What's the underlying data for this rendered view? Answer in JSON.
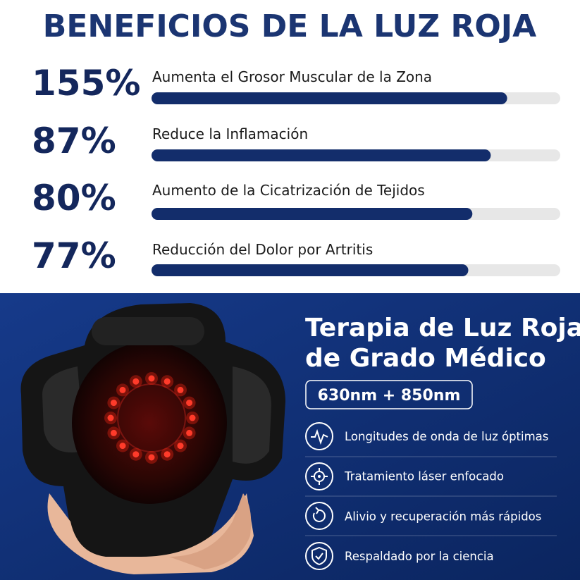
{
  "header": {
    "title": "BENEFICIOS DE LA LUZ ROJA"
  },
  "stats": [
    {
      "value": "155%",
      "label": "Aumenta el Grosor Muscular de la Zona",
      "fill": 87
    },
    {
      "value": "87%",
      "label": "Reduce la Inflamación",
      "fill": 83
    },
    {
      "value": "80%",
      "label": "Aumento de la Cicatrización de Tejidos",
      "fill": 78.5
    },
    {
      "value": "77%",
      "label": "Reducción del Dolor por Artritis",
      "fill": 77.5
    }
  ],
  "panel": {
    "title_lines": [
      "Terapia de Luz Roja",
      "de Grado Médico"
    ],
    "badge": "630nm + 850nm",
    "features": [
      "Longitudes de onda de luz óptimas",
      "Tratamiento láser enfocado",
      "Alivio y recuperación más rápidos",
      "Respaldado por la ciencia"
    ]
  }
}
